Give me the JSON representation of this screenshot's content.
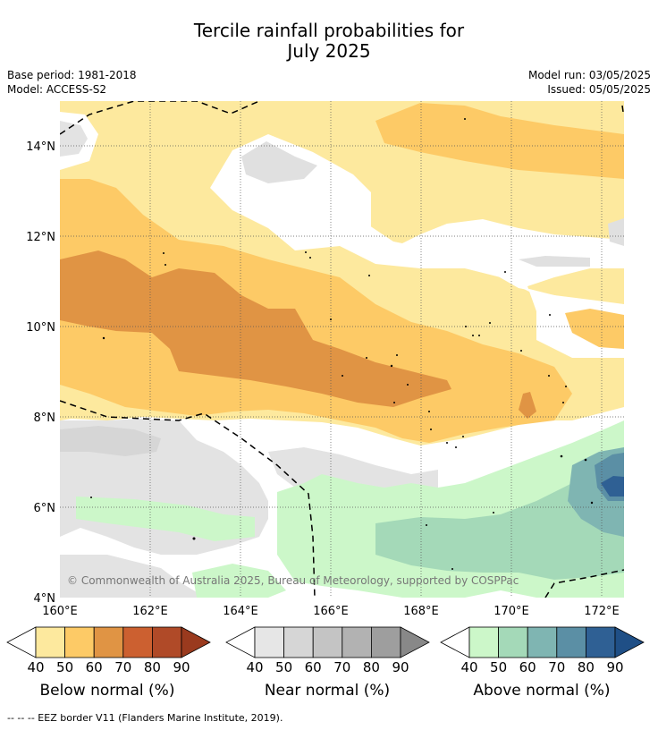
{
  "title": {
    "line1": "Tercile rainfall probabilities for",
    "line2": "July 2025"
  },
  "meta": {
    "base_period": "Base period: 1981-2018",
    "model": "Model: ACCESS-S2",
    "model_run": "Model run: 03/05/2025",
    "issued": "Issued: 05/05/2025"
  },
  "map": {
    "lat_ticks": [
      "4°N",
      "6°N",
      "8°N",
      "10°N",
      "12°N",
      "14°N"
    ],
    "lon_ticks": [
      "160°E",
      "162°E",
      "164°E",
      "166°E",
      "168°E",
      "170°E",
      "172°E"
    ],
    "copyright": "© Commonwealth of Australia 2025, Bureau of Meteorology, supported by COSPPac",
    "extent": {
      "lon_min": 160,
      "lon_max": 172.5,
      "lat_min": 4,
      "lat_max": 15
    }
  },
  "colorbars": [
    {
      "name": "below",
      "label": "Below normal (%)",
      "ticks": [
        "40",
        "50",
        "60",
        "70",
        "80",
        "90"
      ],
      "colors": [
        "#fde99e",
        "#fdca66",
        "#e09444",
        "#cc6030",
        "#b04a28",
        "#9a3a1e"
      ]
    },
    {
      "name": "near",
      "label": "Near normal (%)",
      "ticks": [
        "40",
        "50",
        "60",
        "70",
        "80",
        "90"
      ],
      "colors": [
        "#e6e6e6",
        "#d6d6d6",
        "#c4c4c4",
        "#b2b2b2",
        "#9e9e9e",
        "#888888"
      ]
    },
    {
      "name": "above",
      "label": "Above normal (%)",
      "ticks": [
        "40",
        "50",
        "60",
        "70",
        "80",
        "90"
      ],
      "colors": [
        "#ccf7c9",
        "#a4d9b8",
        "#7fb5b2",
        "#5b8fa5",
        "#2f6094",
        "#1f4f86"
      ]
    }
  ],
  "footer": "--  --  -- EEZ border V11 (Flanders Marine Institute, 2019).",
  "colors": {
    "below_40": "#fde99e",
    "below_50": "#fdca66",
    "below_60": "#e09444",
    "near_40": "#e6e6e6",
    "above_40": "#ccf7c9",
    "above_50": "#a4d9b8",
    "above_60": "#7fb5b2",
    "above_70": "#5b8fa5",
    "above_80": "#2f6094"
  }
}
